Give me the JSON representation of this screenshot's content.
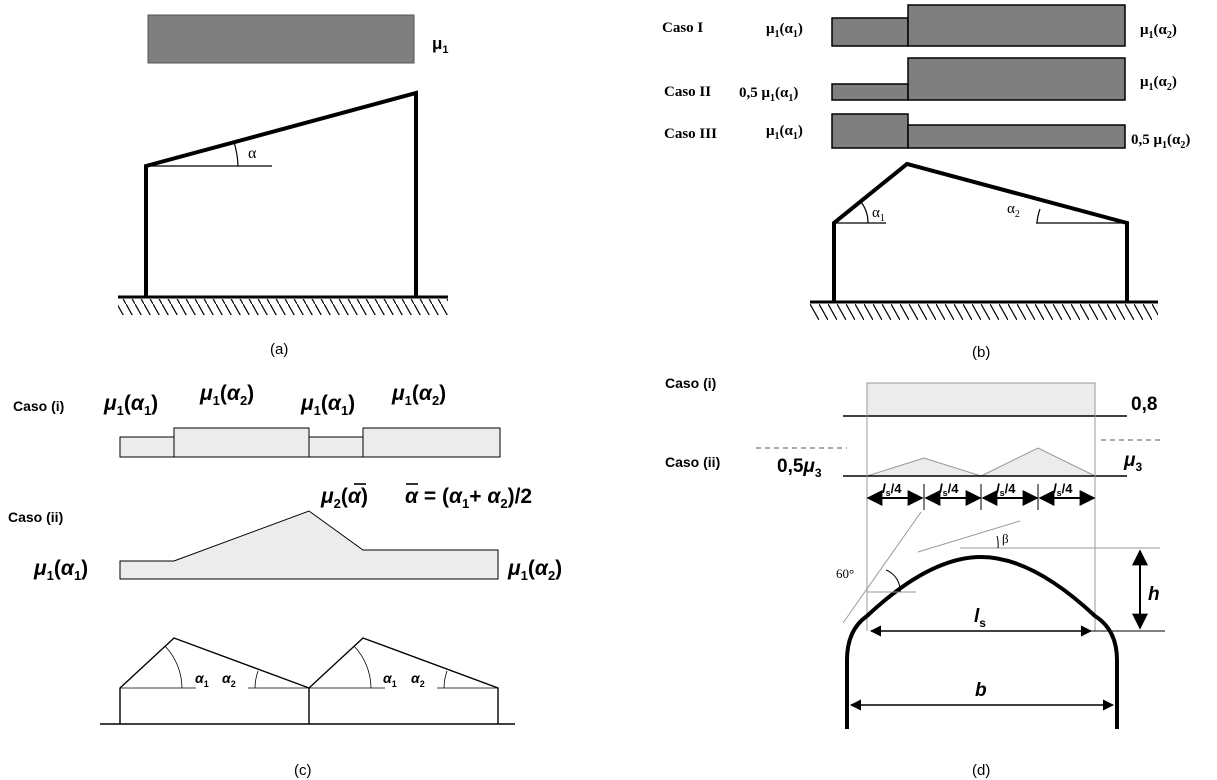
{
  "colors": {
    "dark_fill": "#7f7f7f",
    "light_fill": "#ececec",
    "stroke": "#000000",
    "grey_line": "#9a9a9a"
  },
  "panel_a": {
    "caption": "(a)",
    "load_label": "μ",
    "load_label_sub": "1",
    "angle": "α"
  },
  "panel_b": {
    "caption": "(b)",
    "cases": [
      {
        "name": "Caso I",
        "left_a": "μ",
        "left_sub": "1",
        "left_b": "(α",
        "left_sub2": "1",
        "left_c": ")",
        "right_a": "μ",
        "right_sub": "1",
        "right_b": "(α",
        "right_sub2": "2",
        "right_c": ")"
      },
      {
        "name": "Caso II",
        "left_pre": "0,5 ",
        "left_a": "μ",
        "left_sub": "1",
        "left_b": "(α",
        "left_sub2": "1",
        "left_c": ")",
        "right_a": "μ",
        "right_sub": "1",
        "right_b": "(α",
        "right_sub2": "2",
        "right_c": ")"
      },
      {
        "name": "Caso III",
        "left_a": "μ",
        "left_sub": "1",
        "left_b": "(α",
        "left_sub2": "1",
        "left_c": ")",
        "right_pre": "0,5 ",
        "right_a": "μ",
        "right_sub": "1",
        "right_b": "(α",
        "right_sub2": "2",
        "right_c": ")"
      }
    ],
    "alpha1": "α",
    "alpha1_sub": "1",
    "alpha2": "α",
    "alpha2_sub": "2"
  },
  "panel_c": {
    "caption": "(c)",
    "case_i": "Caso (i)",
    "case_ii": "Caso (ii)",
    "mu": "μ",
    "sub1": "1",
    "sub2": "2",
    "alpha": "α",
    "mu2_label_a": "μ",
    "mu2_label_sub": "2",
    "mu2_label_b": "(",
    "mu2_label_alpha": "α",
    "mu2_label_c": ")",
    "formula_alpha": "α",
    "formula_rest": " = (",
    "formula_plus": "+ ",
    "formula_end": ")/2"
  },
  "panel_d": {
    "caption": "(d)",
    "case_i": "Caso (i)",
    "case_ii": "Caso (ii)",
    "value_08": "0,8",
    "value_05": "0,5",
    "mu": "μ",
    "sub3": "3",
    "ls_quarter_a": "l",
    "ls_quarter_sub": "s",
    "ls_quarter_b": "/4",
    "angle60": "60°",
    "beta": "β",
    "h": "h",
    "ls_a": "l",
    "ls_sub": "s",
    "b": "b"
  }
}
